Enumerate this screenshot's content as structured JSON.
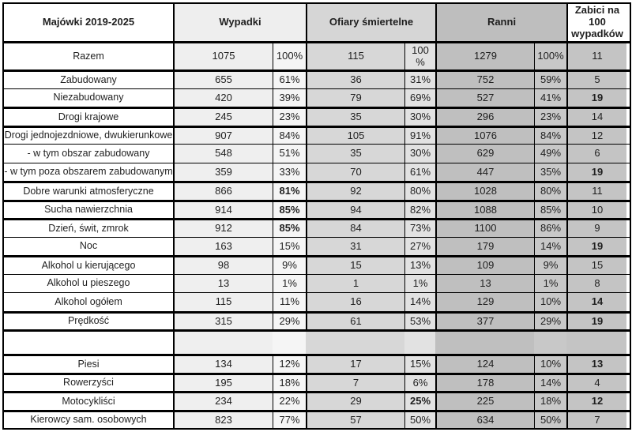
{
  "table": {
    "columns": {
      "label": "Majówki 2019-2025",
      "wypadki": "Wypadki",
      "ofiary_smiertelne": "Ofiary śmiertelne",
      "ranni": "Ranni",
      "zabici_na_100": "Zabici na 100 wypadków"
    },
    "sub_columns_order": [
      "wypadki",
      "wypadki_pct",
      "ofiary",
      "ofiary_pct",
      "ranni",
      "ranni_pct",
      "zabici_na_100_wypadkow"
    ],
    "colors": {
      "border": "#000000",
      "text": "#1f1f1f",
      "label_bg": "#ffffff",
      "header_wypadki_bg": "#eeeeee",
      "header_ofiary_bg": "#d6d6d6",
      "header_ranni_bg": "#bebebe",
      "wypadki_bg": "#efefef",
      "wypadki_pct_bg": "#f5f5f5",
      "ofiary_bg": "#d7d7d7",
      "ofiary_pct_bg": "#e2e2e2",
      "ranni_bg": "#bfbfbf",
      "ranni_pct_bg": "#c8c8c8",
      "zabici_bg": "#c4c4c4"
    },
    "rows": [
      {
        "label": "Razem",
        "cells": [
          "1075",
          "100%",
          "115",
          "100\n%",
          "1279",
          "100%",
          "11"
        ],
        "tall": true
      },
      {
        "label": "Zabudowany",
        "cells": [
          "655",
          "61%",
          "36",
          "31%",
          "752",
          "59%",
          "5"
        ]
      },
      {
        "label": "Niezabudowany",
        "cells": [
          "420",
          "39%",
          "79",
          "69%",
          "527",
          "41%",
          "19"
        ],
        "bold": [
          6
        ],
        "thin_top": true
      },
      {
        "label": "Drogi krajowe",
        "cells": [
          "245",
          "23%",
          "35",
          "30%",
          "296",
          "23%",
          "14"
        ]
      },
      {
        "label": "Drogi jednojezdniowe, dwukierunkowe",
        "cells": [
          "907",
          "84%",
          "105",
          "91%",
          "1076",
          "84%",
          "12"
        ]
      },
      {
        "label": "- w tym obszar zabudowany",
        "cells": [
          "548",
          "51%",
          "35",
          "30%",
          "629",
          "49%",
          "6"
        ],
        "thin_top": true
      },
      {
        "label": "- w tym poza obszarem zabudowanym",
        "cells": [
          "359",
          "33%",
          "70",
          "61%",
          "447",
          "35%",
          "19"
        ],
        "bold": [
          6
        ],
        "thin_top": true
      },
      {
        "label": "Dobre warunki atmosferyczne",
        "cells": [
          "866",
          "81%",
          "92",
          "80%",
          "1028",
          "80%",
          "11"
        ],
        "bold": [
          1
        ]
      },
      {
        "label": "Sucha nawierzchnia",
        "cells": [
          "914",
          "85%",
          "94",
          "82%",
          "1088",
          "85%",
          "10"
        ],
        "bold": [
          1
        ]
      },
      {
        "label": "Dzień, świt, zmrok",
        "cells": [
          "912",
          "85%",
          "84",
          "73%",
          "1100",
          "86%",
          "9"
        ],
        "bold": [
          1
        ]
      },
      {
        "label": "Noc",
        "cells": [
          "163",
          "15%",
          "31",
          "27%",
          "179",
          "14%",
          "19"
        ],
        "bold": [
          6
        ],
        "thin_top": true
      },
      {
        "label": "Alkohol u kierującego",
        "cells": [
          "98",
          "9%",
          "15",
          "13%",
          "109",
          "9%",
          "15"
        ]
      },
      {
        "label": "Alkohol u pieszego",
        "cells": [
          "13",
          "1%",
          "1",
          "1%",
          "13",
          "1%",
          "8"
        ],
        "thin_top": true
      },
      {
        "label": "Alkohol ogółem",
        "cells": [
          "115",
          "11%",
          "16",
          "14%",
          "129",
          "10%",
          "14"
        ],
        "bold": [
          6
        ],
        "thin_top": true
      },
      {
        "label": "Prędkość",
        "cells": [
          "315",
          "29%",
          "61",
          "53%",
          "377",
          "29%",
          "19"
        ],
        "bold": [
          6
        ]
      },
      {
        "label": "",
        "cells": [
          "",
          "",
          "",
          "",
          "",
          "",
          ""
        ],
        "empty": true
      },
      {
        "label": "Piesi",
        "cells": [
          "134",
          "12%",
          "17",
          "15%",
          "124",
          "10%",
          "13"
        ],
        "bold": [
          6
        ]
      },
      {
        "label": "Rowerzyści",
        "cells": [
          "195",
          "18%",
          "7",
          "6%",
          "178",
          "14%",
          "4"
        ]
      },
      {
        "label": "Motocykliści",
        "cells": [
          "234",
          "22%",
          "29",
          "25%",
          "225",
          "18%",
          "12"
        ],
        "bold": [
          3,
          6
        ]
      },
      {
        "label": "Kierowcy sam. osobowych",
        "cells": [
          "823",
          "77%",
          "57",
          "50%",
          "634",
          "50%",
          "7"
        ]
      }
    ]
  }
}
